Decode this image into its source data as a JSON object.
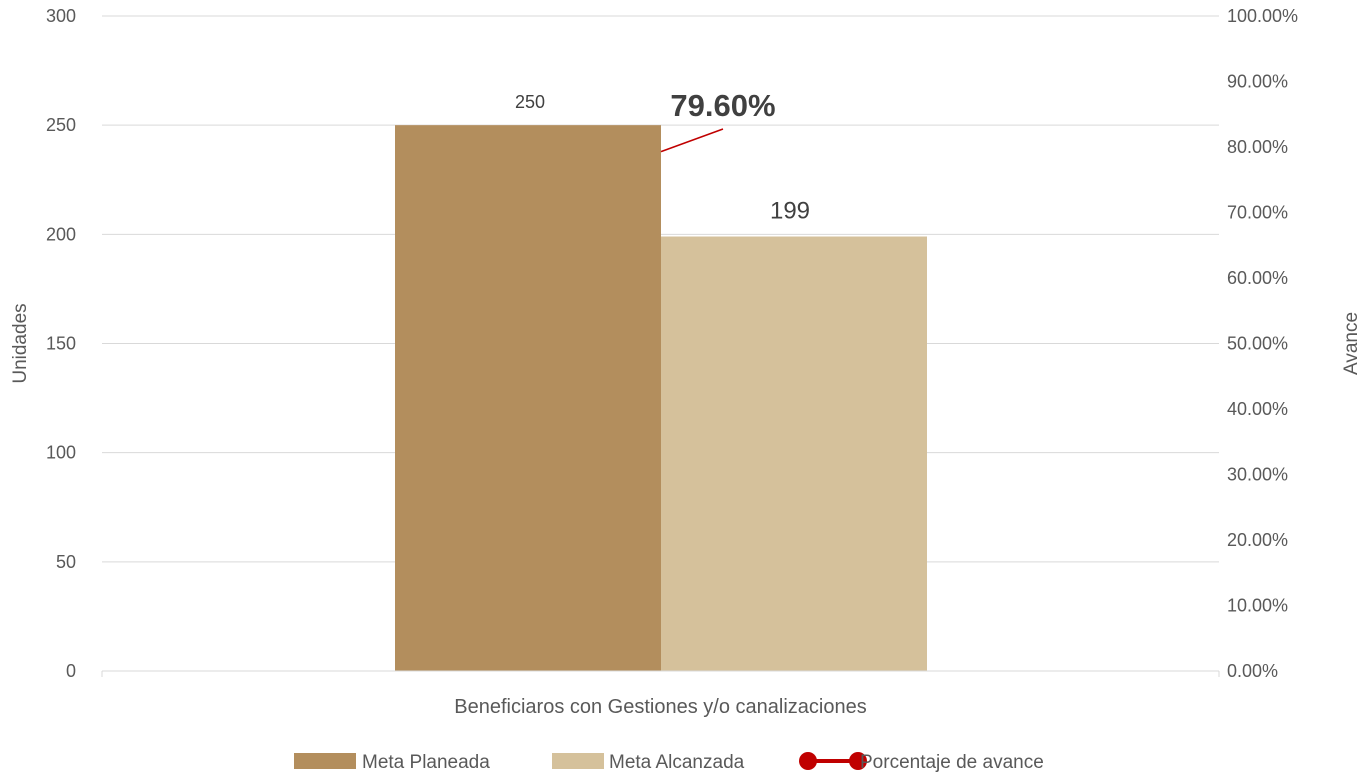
{
  "chart_data": {
    "type": "bar",
    "title": "",
    "categories": [
      "Beneficiaros con Gestiones y/o canalizaciones"
    ],
    "series": [
      {
        "name": "Meta Planeada",
        "values": [
          250
        ],
        "color": "#B38E5D",
        "label": "250"
      },
      {
        "name": "Meta Alcanzada",
        "values": [
          199
        ],
        "color": "#D5C19B",
        "label": "199"
      }
    ],
    "line_series": {
      "name": "Porcentaje de avance",
      "values": [
        0.796
      ],
      "label": "79.60%",
      "color": "#C00000",
      "axis": "secondary"
    },
    "ylabel": "Unidades",
    "y2label": "Avance",
    "ylim": [
      0,
      300
    ],
    "y2lim": [
      0,
      1
    ],
    "yticks": [
      "0",
      "50",
      "100",
      "150",
      "200",
      "250",
      "300"
    ],
    "y2ticks": [
      "0.00%",
      "10.00%",
      "20.00%",
      "30.00%",
      "40.00%",
      "50.00%",
      "60.00%",
      "70.00%",
      "80.00%",
      "90.00%",
      "100.00%"
    ],
    "grid": true,
    "legend_position": "bottom",
    "legend": [
      "Meta Planeada",
      "Meta Alcanzada",
      "Porcentaje de avance"
    ]
  }
}
